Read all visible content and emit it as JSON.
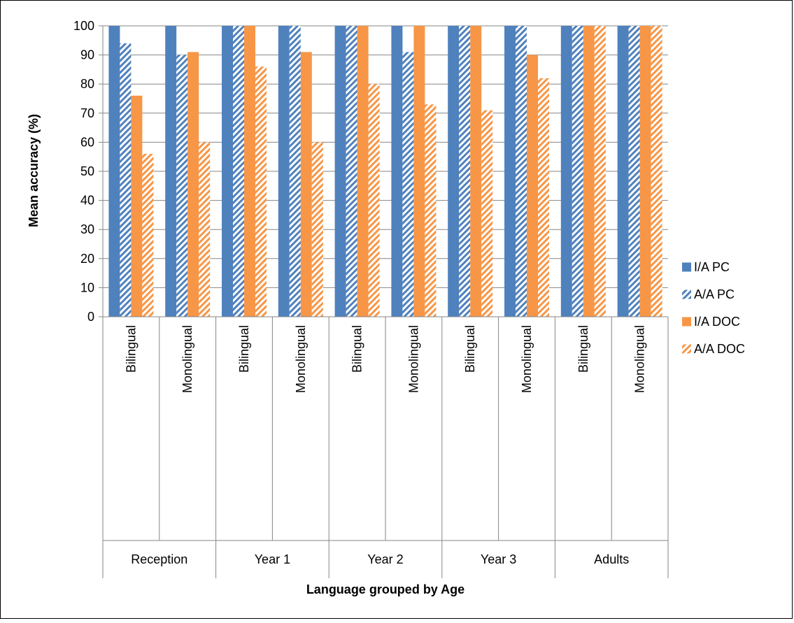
{
  "chart_data": {
    "type": "bar",
    "ylabel": "Mean accuracy (%)",
    "xlabel": "Language grouped by Age",
    "ylim": [
      0,
      100
    ],
    "yticks": [
      0,
      10,
      20,
      30,
      40,
      50,
      60,
      70,
      80,
      90,
      100
    ],
    "grid": true,
    "legend_position": "right",
    "groups": [
      "Reception",
      "Year 1",
      "Year 2",
      "Year 3",
      "Adults"
    ],
    "categories": [
      "Bilingual",
      "Monolingual",
      "Bilingual",
      "Monolingual",
      "Bilingual",
      "Monolingual",
      "Bilingual",
      "Monolingual",
      "Bilingual",
      "Monolingual"
    ],
    "series": [
      {
        "name": "I/A PC",
        "color": "#4F81BD",
        "pattern": "solid",
        "values": [
          100,
          100,
          100,
          100,
          100,
          100,
          100,
          100,
          100,
          100
        ]
      },
      {
        "name": "A/A PC",
        "color": "#4F81BD",
        "pattern": "hatched",
        "values": [
          94,
          90,
          100,
          100,
          100,
          91,
          100,
          100,
          100,
          100
        ]
      },
      {
        "name": "I/A DOC",
        "color": "#F79646",
        "pattern": "solid",
        "values": [
          76,
          91,
          100,
          91,
          100,
          100,
          100,
          90,
          100,
          100
        ]
      },
      {
        "name": "A/A DOC",
        "color": "#F79646",
        "pattern": "hatched",
        "values": [
          56,
          60,
          86,
          60,
          80,
          73,
          71,
          82,
          100,
          100
        ]
      }
    ]
  }
}
